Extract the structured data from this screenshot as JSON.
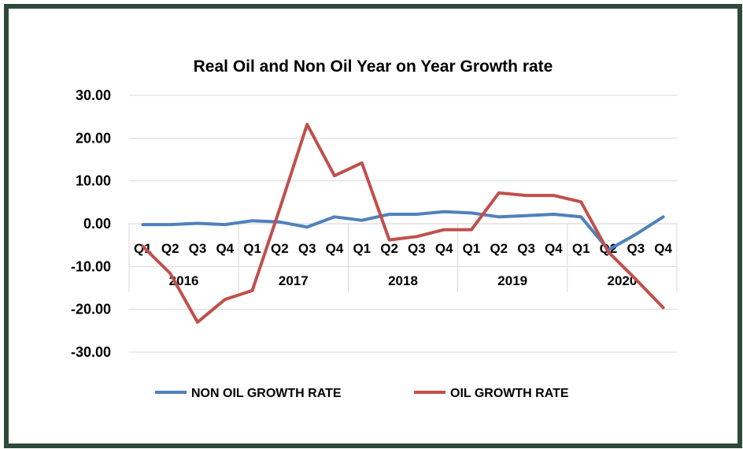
{
  "chart_data": {
    "type": "line",
    "title": "Real Oil and Non Oil Year on Year Growth rate",
    "years": [
      "2016",
      "2017",
      "2018",
      "2019",
      "2020"
    ],
    "categories": [
      "Q1",
      "Q2",
      "Q3",
      "Q4",
      "Q1",
      "Q2",
      "Q3",
      "Q4",
      "Q1",
      "Q2",
      "Q3",
      "Q4",
      "Q1",
      "Q2",
      "Q3",
      "Q4",
      "Q1",
      "Q2",
      "Q3",
      "Q4"
    ],
    "yticks": [
      "30.00",
      "20.00",
      "10.00",
      "0.00",
      "-10.00",
      "-20.00",
      "-30.00"
    ],
    "ylim": [
      -30,
      30
    ],
    "grid": true,
    "legend_position": "bottom",
    "series": [
      {
        "name": "NON OIL GROWTH RATE",
        "color": "#4f81bd",
        "values": [
          -0.2,
          -0.2,
          0.1,
          -0.2,
          0.7,
          0.4,
          -0.8,
          1.6,
          0.8,
          2.2,
          2.2,
          2.8,
          2.5,
          1.6,
          1.9,
          2.2,
          1.6,
          -6.1,
          -2.5,
          1.6
        ]
      },
      {
        "name": "OIL GROWTH RATE",
        "color": "#c0504d",
        "values": [
          -5.3,
          -11.6,
          -23.0,
          -17.7,
          -15.6,
          3.5,
          23.2,
          11.2,
          14.2,
          -3.8,
          -3.0,
          -1.4,
          -1.4,
          7.2,
          6.6,
          6.6,
          5.1,
          -6.6,
          -13.0,
          -19.6
        ]
      }
    ]
  }
}
